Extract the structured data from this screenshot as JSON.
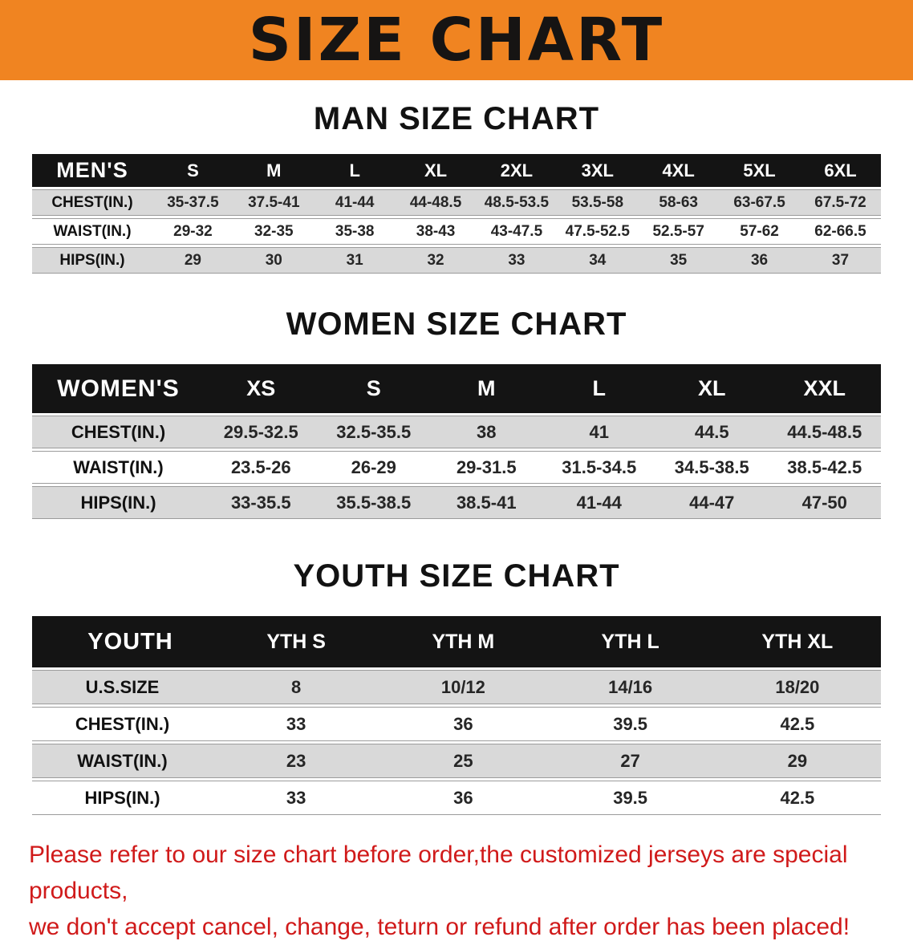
{
  "banner": {
    "title": "SIZE CHART"
  },
  "colors": {
    "banner_bg": "#F08421",
    "table_header_bg": "#141414",
    "row_shade": "#D9D9D9",
    "footer_text": "#D01A1A"
  },
  "sections": {
    "men": {
      "heading": "MAN SIZE CHART",
      "header": [
        "MEN'S",
        "S",
        "M",
        "L",
        "XL",
        "2XL",
        "3XL",
        "4XL",
        "5XL",
        "6XL"
      ],
      "rows": [
        [
          "CHEST(IN.)",
          "35-37.5",
          "37.5-41",
          "41-44",
          "44-48.5",
          "48.5-53.5",
          "53.5-58",
          "58-63",
          "63-67.5",
          "67.5-72"
        ],
        [
          "WAIST(IN.)",
          "29-32",
          "32-35",
          "35-38",
          "38-43",
          "43-47.5",
          "47.5-52.5",
          "52.5-57",
          "57-62",
          "62-66.5"
        ],
        [
          "HIPS(IN.)",
          "29",
          "30",
          "31",
          "32",
          "33",
          "34",
          "35",
          "36",
          "37"
        ]
      ]
    },
    "women": {
      "heading": "WOMEN SIZE CHART",
      "header": [
        "WOMEN'S",
        "XS",
        "S",
        "M",
        "L",
        "XL",
        "XXL"
      ],
      "rows": [
        [
          "CHEST(IN.)",
          "29.5-32.5",
          "32.5-35.5",
          "38",
          "41",
          "44.5",
          "44.5-48.5"
        ],
        [
          "WAIST(IN.)",
          "23.5-26",
          "26-29",
          "29-31.5",
          "31.5-34.5",
          "34.5-38.5",
          "38.5-42.5"
        ],
        [
          "HIPS(IN.)",
          "33-35.5",
          "35.5-38.5",
          "38.5-41",
          "41-44",
          "44-47",
          "47-50"
        ]
      ]
    },
    "youth": {
      "heading": "YOUTH SIZE CHART",
      "header": [
        "YOUTH",
        "YTH S",
        "YTH M",
        "YTH L",
        "YTH XL"
      ],
      "rows": [
        [
          "U.S.SIZE",
          "8",
          "10/12",
          "14/16",
          "18/20"
        ],
        [
          "CHEST(IN.)",
          "33",
          "36",
          "39.5",
          "42.5"
        ],
        [
          "WAIST(IN.)",
          "23",
          "25",
          "27",
          "29"
        ],
        [
          "HIPS(IN.)",
          "33",
          "36",
          "39.5",
          "42.5"
        ]
      ]
    }
  },
  "footer": {
    "line1": "Please refer to our size chart before order,the customized jerseys are special products,",
    "line2": "we don't accept cancel, change, teturn or refund after order has been placed!"
  }
}
